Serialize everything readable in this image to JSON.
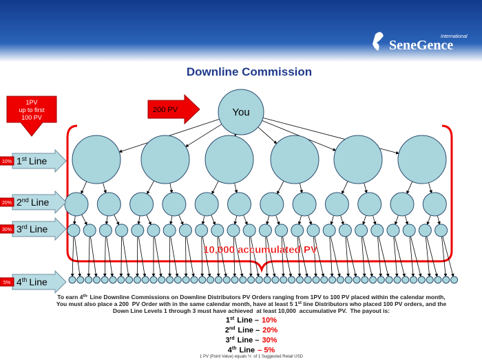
{
  "header": {
    "logo_small": "International",
    "logo": "SeneGence"
  },
  "title": "Downline Commission",
  "you": "You",
  "left_note": [
    "1PV",
    "up to first",
    "100 PV"
  ],
  "order_note": "200 PV",
  "lines": [
    {
      "rate": "10%",
      "num": "1",
      "sup": "st",
      "text": "Line"
    },
    {
      "rate": "20%",
      "num": "2",
      "sup": "nd",
      "text": "Line"
    },
    {
      "rate": "30%",
      "num": "3",
      "sup": "rd",
      "text": "Line"
    },
    {
      "rate": "5%",
      "num": "4",
      "sup": "th",
      "text": "Line"
    }
  ],
  "accumulated": "10,000 accumulated PV",
  "paragraph": [
    [
      "To earn 4",
      "th-",
      " Line Downline Commissions on Downline Distributors PV Orders ranging from 1PV to 100 PV placed within the calendar month,"
    ],
    [
      "You must also place a 200  PV Order with in the same calendar month, have at least 5 1",
      "st",
      " line Distributors who placed 100 PV orders, and the"
    ],
    [
      "Down Line Levels 1 through 3 must have achieved  at least 10,000  accumulative PV.  The payout is:"
    ]
  ],
  "payout": [
    {
      "num": "1",
      "sup": "st",
      "label": "Line –",
      "rate": "10%"
    },
    {
      "num": "2",
      "sup": "nd",
      "label": "Line –",
      "rate": "20%"
    },
    {
      "num": "3",
      "sup": "rd",
      "label": "Line –",
      "rate": "30%"
    },
    {
      "num": "4",
      "sup": "th",
      "label": "Line",
      "rate": "– 5%"
    }
  ],
  "footnote": "1 PV (Point Value) equals ½  of 1 Suggested Retail USD"
}
